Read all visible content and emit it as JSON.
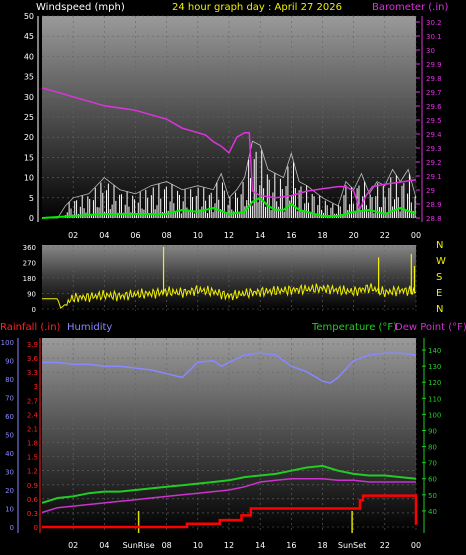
{
  "header": {
    "wind_label": "Windspeed (mph)",
    "title": "24 hour graph day : April 27 2026",
    "baro_label": "Barometer (.in)"
  },
  "mid": {
    "compass": [
      "N",
      "W",
      "S",
      "E",
      "N"
    ]
  },
  "lower": {
    "rain_label": "Rainfall (.in)",
    "humidity_label": "Humidity",
    "temp_label": "Temperature (°F)",
    "dew_label": "Dew Point (°F)",
    "sunrise_label": "SunRise",
    "sunset_label": "SunSet"
  },
  "colors": {
    "wind": "#ffffff",
    "gust": "#ffffff",
    "wind_avg": "#00ee00",
    "barometer": "#dd33dd",
    "direction": "#f0f000",
    "rain": "#ff0000",
    "humidity": "#8888ff",
    "temperature": "#22cc22",
    "dewpoint": "#cc33cc",
    "sun_marker": "#dddd00"
  },
  "chart_data": [
    {
      "type": "line",
      "name": "wind-barometer",
      "x_ticks": [
        "02",
        "04",
        "06",
        "08",
        "10",
        "12",
        "14",
        "16",
        "18",
        "20",
        "22",
        "00"
      ],
      "x_hours": [
        0,
        24
      ],
      "y_left": {
        "label": "Windspeed (mph)",
        "range": [
          0,
          50
        ],
        "ticks": [
          0,
          5,
          10,
          15,
          20,
          25,
          30,
          35,
          40,
          45,
          50
        ]
      },
      "y_right": {
        "label": "Barometer (.in)",
        "range": [
          29.8,
          30.25
        ],
        "ticks": [
          "28.8",
          "28.9",
          "29",
          "29.1",
          "29.2",
          "29.3",
          "29.4",
          "29.5",
          "29.6",
          "29.7",
          "29.8",
          "29.9",
          "30",
          "30.1",
          "30.2"
        ]
      },
      "series": [
        {
          "name": "barometer",
          "axis": "right",
          "x": [
            0,
            1,
            2,
            3,
            4,
            5,
            6,
            7,
            8,
            9,
            10,
            10.5,
            11,
            11.5,
            12,
            12.5,
            13,
            13.3,
            13.5,
            14,
            15,
            16,
            17,
            18,
            19,
            19.5,
            20,
            20.4,
            20.8,
            21.2,
            22,
            23,
            24
          ],
          "y": [
            30.09,
            30.08,
            30.07,
            30.06,
            30.05,
            30.045,
            30.04,
            30.03,
            30.02,
            30.0,
            29.99,
            29.985,
            29.97,
            29.96,
            29.945,
            29.98,
            29.99,
            29.99,
            29.86,
            29.85,
            29.845,
            29.85,
            29.86,
            29.865,
            29.87,
            29.87,
            29.86,
            29.82,
            29.85,
            29.87,
            29.875,
            29.88,
            29.885
          ]
        },
        {
          "name": "wind-max",
          "axis": "left",
          "x": [
            0,
            1,
            1.5,
            2,
            3,
            4,
            5,
            6,
            7,
            8,
            9,
            10,
            11,
            11.5,
            12,
            12.5,
            13,
            13.5,
            14,
            14.5,
            15,
            15.5,
            16,
            16.5,
            17,
            18,
            19,
            19.5,
            20,
            20.5,
            21,
            21.5,
            22,
            22.5,
            23,
            23.5,
            24
          ],
          "y": [
            0,
            0,
            3,
            5,
            6,
            10,
            7,
            6,
            8,
            9,
            7,
            8,
            7,
            11,
            5,
            7,
            10,
            19,
            18,
            12,
            11,
            10,
            16,
            9,
            8,
            5,
            3,
            9,
            7,
            11,
            6,
            9,
            8,
            12,
            9,
            12,
            5
          ]
        },
        {
          "name": "wind-average",
          "axis": "left",
          "x": [
            0,
            2,
            4,
            6,
            8,
            9,
            10,
            11,
            12,
            13,
            13.5,
            14,
            14.5,
            15,
            15.5,
            16,
            16.5,
            17,
            18,
            19,
            20,
            21,
            22,
            23,
            24
          ],
          "y": [
            0,
            0.5,
            1,
            1,
            1,
            2,
            1.5,
            2.5,
            1,
            1.5,
            4,
            5,
            3,
            2,
            2,
            3.5,
            2,
            1.5,
            0.5,
            0.5,
            1.5,
            2,
            1,
            2.5,
            1
          ]
        }
      ]
    },
    {
      "type": "line",
      "name": "wind-direction",
      "y_left": {
        "range": [
          0,
          360
        ],
        "ticks": [
          0,
          90,
          180,
          270,
          360
        ]
      },
      "series": [
        {
          "name": "direction",
          "x": [
            0,
            1.0,
            1.2,
            2,
            3,
            4,
            5,
            6,
            7,
            8,
            9,
            10,
            11,
            12,
            13,
            14,
            15,
            16,
            17,
            18,
            19,
            20,
            21,
            22,
            23,
            24
          ],
          "y": [
            60,
            60,
            5,
            65,
            70,
            80,
            75,
            85,
            90,
            100,
            95,
            110,
            100,
            75,
            90,
            100,
            105,
            110,
            115,
            120,
            110,
            100,
            125,
            95,
            110,
            100
          ]
        }
      ]
    },
    {
      "type": "line",
      "name": "rain-humidity-temperature",
      "x_ticks": [
        "02",
        "04",
        "SunRise",
        "08",
        "10",
        "12",
        "14",
        "16",
        "18",
        "SunSet",
        "22",
        "00"
      ],
      "sunrise_hour": 6.2,
      "sunset_hour": 19.9,
      "y_left_rain": {
        "label": "Rainfall (.in)",
        "range": [
          0,
          4
        ],
        "ticks": [
          "0",
          "0.3",
          "0.6",
          "0.9",
          "1.2",
          "1.5",
          "1.8",
          "2.1",
          "2.4",
          "2.7",
          "3",
          "3.3",
          "3.6",
          "3.9"
        ]
      },
      "y_left_humidity": {
        "label": "Humidity",
        "range": [
          0,
          100
        ],
        "ticks": [
          0,
          10,
          20,
          30,
          40,
          50,
          60,
          70,
          80,
          90,
          100
        ]
      },
      "y_right": {
        "label": "Temperature (°F)",
        "range": [
          30,
          145
        ],
        "ticks": [
          40,
          50,
          60,
          70,
          80,
          90,
          100,
          110,
          120,
          130,
          140
        ]
      },
      "series": [
        {
          "name": "humidity",
          "axis": "humidity",
          "x": [
            0,
            1,
            2,
            3,
            4,
            5,
            6,
            7,
            8,
            9,
            9.5,
            10,
            11,
            11.5,
            12,
            13,
            14,
            15,
            16,
            17,
            18,
            18.5,
            19,
            20,
            21,
            22,
            23,
            24
          ],
          "y": [
            88,
            88,
            87,
            87,
            86,
            86,
            85,
            84,
            82,
            80,
            84,
            88,
            89,
            86,
            88,
            92,
            93,
            92,
            86,
            83,
            78,
            77,
            80,
            89,
            92,
            93,
            93,
            92
          ]
        },
        {
          "name": "temperature",
          "axis": "right",
          "x": [
            0,
            1,
            2,
            3,
            4,
            5,
            6,
            7,
            8,
            9,
            10,
            11,
            12,
            13,
            14,
            15,
            16,
            17,
            18,
            19,
            20,
            21,
            22,
            23,
            24
          ],
          "y": [
            45,
            48,
            49,
            51,
            52,
            52,
            53,
            54,
            55,
            56,
            57,
            58,
            59,
            61,
            62,
            63,
            65,
            67,
            68,
            65,
            63,
            62,
            62,
            61,
            60
          ]
        },
        {
          "name": "dewpoint",
          "axis": "right",
          "x": [
            0,
            1,
            2,
            3,
            4,
            5,
            6,
            7,
            8,
            9,
            10,
            11,
            12,
            13,
            14,
            15,
            16,
            17,
            18,
            19,
            20,
            21,
            22,
            23,
            24
          ],
          "y": [
            39,
            42,
            43,
            44,
            45,
            46,
            47,
            48,
            49,
            50,
            51,
            52,
            53,
            55,
            58,
            59,
            60,
            60,
            60,
            59,
            59,
            58,
            58,
            58,
            58
          ]
        },
        {
          "name": "rainfall",
          "axis": "rain",
          "x": [
            0,
            9.3,
            9.3,
            11.2,
            11.4,
            12.8,
            13.4,
            19.0,
            19.6,
            20.4,
            20.6,
            23.8,
            24
          ],
          "y": [
            0,
            0,
            0.07,
            0.07,
            0.15,
            0.25,
            0.4,
            0.4,
            0.4,
            0.58,
            0.68,
            0.68,
            0.05
          ]
        }
      ]
    }
  ]
}
